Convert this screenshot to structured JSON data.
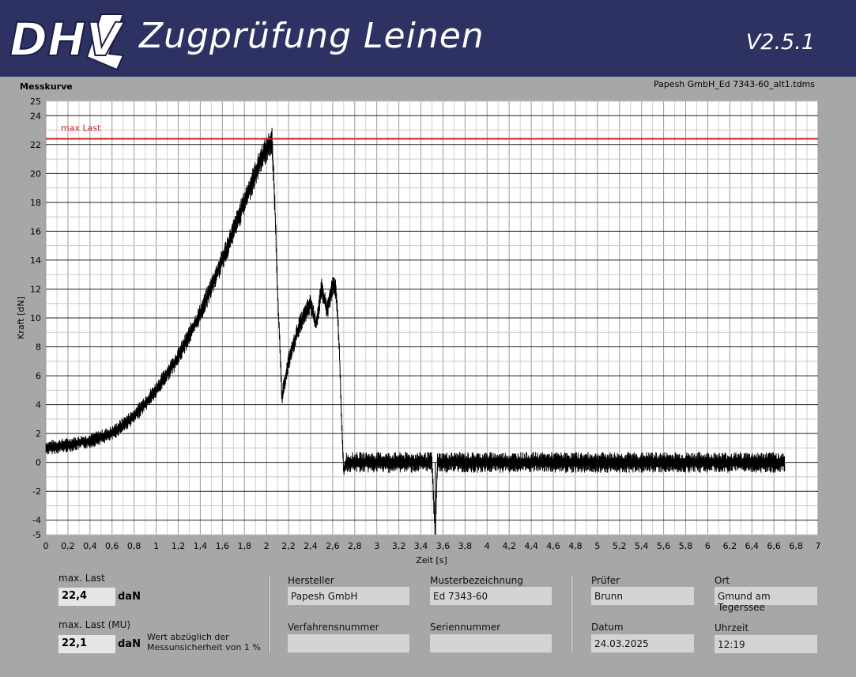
{
  "header": {
    "logo_text": "DHV",
    "title": "Zugprüfung Leinen",
    "version": "V2.5.1"
  },
  "chart_panel": {
    "title": "Messkurve",
    "filename": "Papesh GmbH_Ed 7343-60_alt1.tdms",
    "max_marker_label": "max Last"
  },
  "colors": {
    "header_bg": "#2e3263",
    "panel_bg": "#a7a7a7",
    "plot_bg": "#ffffff",
    "curve": "#000000",
    "max_line": "#cc1f1f"
  },
  "chart_data": {
    "type": "line",
    "title": "",
    "xlabel": "Zeit [s]",
    "ylabel": "Kraft [dN]",
    "xlim": [
      0,
      7
    ],
    "ylim": [
      -5,
      25
    ],
    "x_ticks": [
      "0",
      "0,2",
      "0,4",
      "0,6",
      "0,8",
      "1",
      "1,2",
      "1,4",
      "1,6",
      "1,8",
      "2",
      "2,2",
      "2,4",
      "2,6",
      "2,8",
      "3",
      "3,2",
      "3,4",
      "3,6",
      "3,8",
      "4",
      "4,2",
      "4,4",
      "4,6",
      "4,8",
      "5",
      "5,2",
      "5,4",
      "5,6",
      "5,8",
      "6",
      "6,2",
      "6,4",
      "6,6",
      "6,8",
      "7"
    ],
    "y_ticks": [
      "-5",
      "-4",
      "-2",
      "0",
      "2",
      "4",
      "6",
      "8",
      "10",
      "12",
      "14",
      "16",
      "18",
      "20",
      "22",
      "24",
      "25"
    ],
    "grid": true,
    "max_line": 22.4,
    "series": [
      {
        "x": [
          0,
          0.2,
          0.4,
          0.6,
          0.8,
          1.0,
          1.2,
          1.4,
          1.6,
          1.8,
          1.95,
          2.05,
          2.08,
          2.1,
          2.14,
          2.2,
          2.3,
          2.4,
          2.45,
          2.5,
          2.55,
          2.6,
          2.63,
          2.66,
          2.68,
          2.7,
          2.72,
          3.0,
          3.5,
          3.53,
          3.55,
          4.0,
          5.0,
          6.0,
          6.7
        ],
        "y": [
          1.0,
          1.2,
          1.5,
          2.0,
          3.2,
          5.0,
          7.3,
          10.3,
          14.0,
          18.0,
          21.0,
          22.3,
          17.0,
          12.0,
          4.5,
          7.0,
          9.5,
          11.0,
          9.5,
          12.0,
          10.5,
          12.2,
          12.0,
          8.0,
          3.0,
          -0.6,
          0.0,
          0.0,
          0.0,
          -5.0,
          0.0,
          0.0,
          0.0,
          0.0,
          0.0
        ],
        "noise_amplitude": 0.8
      }
    ]
  },
  "results": {
    "max_last_label": "max. Last",
    "max_last_value": "22,4",
    "max_last_unit": "daN",
    "max_last_mu_label": "max. Last (MU)",
    "max_last_mu_value": "22,1",
    "max_last_mu_unit": "daN",
    "mu_note_line1": "Wert abzüglich der",
    "mu_note_line2": "Messunsicherheit von 1 %"
  },
  "info": {
    "hersteller_label": "Hersteller",
    "hersteller_value": "Papesh GmbH",
    "musterbezeichnung_label": "Musterbezeichnung",
    "musterbezeichnung_value": "Ed 7343-60",
    "verfahrensnummer_label": "Verfahrensnummer",
    "verfahrensnummer_value": "",
    "seriennummer_label": "Seriennummer",
    "seriennummer_value": "",
    "pruefer_label": "Prüfer",
    "pruefer_value": "Brunn",
    "ort_label": "Ort",
    "ort_value": "Gmund am Tegerssee",
    "datum_label": "Datum",
    "datum_value": "24.03.2025",
    "uhrzeit_label": "Uhrzeit",
    "uhrzeit_value": "12:19"
  }
}
